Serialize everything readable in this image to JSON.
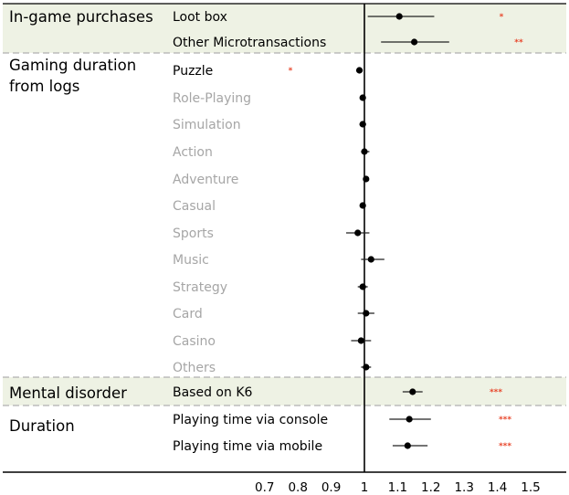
{
  "chart_data": {
    "type": "forest",
    "reference_line": 1,
    "xlim": [
      0.6,
      1.6
    ],
    "x_ticks": [
      "0.7",
      "0.8",
      "0.9",
      "1",
      "1.1",
      "1.2",
      "1.3",
      "1.4",
      "1.5"
    ],
    "x_tick_values": [
      0.7,
      0.8,
      0.9,
      1.0,
      1.1,
      1.2,
      1.3,
      1.4,
      1.5
    ],
    "colors": {
      "shaded_band": "#eef2e4",
      "muted_label": "#a6a6a6",
      "significance": "#e8462b",
      "marker": "#000000",
      "divider": "#b0b0b0"
    },
    "groups": [
      {
        "label_lines": [
          "In-game purchases"
        ],
        "shaded": true,
        "rows": [
          {
            "label": "Loot box",
            "estimate": 1.105,
            "ci": [
              1.01,
              1.21
            ],
            "sig": "*",
            "muted": false
          },
          {
            "label": "Other Microtransactions",
            "estimate": 1.15,
            "ci": [
              1.05,
              1.255
            ],
            "sig": "**",
            "muted": false
          }
        ]
      },
      {
        "label_lines": [
          "Gaming duration",
          "from logs"
        ],
        "shaded": false,
        "rows": [
          {
            "label": "Puzzle",
            "estimate": 0.985,
            "ci": [
              0.975,
              0.995
            ],
            "sig": "*",
            "muted": false
          },
          {
            "label": "Role-Playing",
            "estimate": 0.995,
            "ci": [
              0.99,
              1.0
            ],
            "sig": "",
            "muted": true
          },
          {
            "label": "Simulation",
            "estimate": 0.995,
            "ci": [
              0.985,
              1.005
            ],
            "sig": "",
            "muted": true
          },
          {
            "label": "Action",
            "estimate": 1.0,
            "ci": [
              0.99,
              1.015
            ],
            "sig": "",
            "muted": true
          },
          {
            "label": "Adventure",
            "estimate": 1.005,
            "ci": [
              1.0,
              1.01
            ],
            "sig": "",
            "muted": true
          },
          {
            "label": "Casual",
            "estimate": 0.995,
            "ci": [
              0.99,
              1.0
            ],
            "sig": "",
            "muted": true
          },
          {
            "label": "Sports",
            "estimate": 0.98,
            "ci": [
              0.945,
              1.015
            ],
            "sig": "",
            "muted": true
          },
          {
            "label": "Music",
            "estimate": 1.02,
            "ci": [
              0.99,
              1.06
            ],
            "sig": "",
            "muted": true
          },
          {
            "label": "Strategy",
            "estimate": 0.995,
            "ci": [
              0.98,
              1.01
            ],
            "sig": "",
            "muted": true
          },
          {
            "label": "Card",
            "estimate": 1.005,
            "ci": [
              0.98,
              1.03
            ],
            "sig": "",
            "muted": true
          },
          {
            "label": "Casino",
            "estimate": 0.99,
            "ci": [
              0.96,
              1.02
            ],
            "sig": "",
            "muted": true
          },
          {
            "label": "Others",
            "estimate": 1.005,
            "ci": [
              0.99,
              1.02
            ],
            "sig": "",
            "muted": true
          }
        ]
      },
      {
        "label_lines": [
          "Mental disorder"
        ],
        "shaded": true,
        "rows": [
          {
            "label": "Based on K6",
            "estimate": 1.145,
            "ci": [
              1.115,
              1.175
            ],
            "sig": "***",
            "muted": false
          }
        ]
      },
      {
        "label_lines": [
          "Duration"
        ],
        "shaded": false,
        "rows": [
          {
            "label": "Playing time via console",
            "estimate": 1.135,
            "ci": [
              1.075,
              1.2
            ],
            "sig": "***",
            "muted": false
          },
          {
            "label": "Playing time via mobile",
            "estimate": 1.13,
            "ci": [
              1.085,
              1.19
            ],
            "sig": "***",
            "muted": false
          }
        ]
      }
    ]
  }
}
